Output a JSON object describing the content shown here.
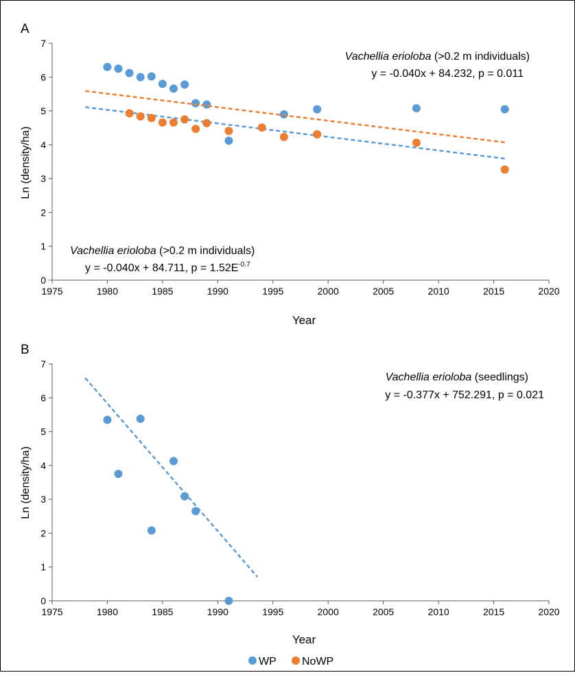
{
  "panels": [
    {
      "label": "A",
      "annotations": [
        {
          "species": "Vachellia erioloba",
          "qualifier": " (>0.2 m individuals)",
          "equation": "y = -0.040x + 84.232, p = 0.011",
          "p_exponent": ""
        },
        {
          "species": "Vachellia erioloba",
          "qualifier": " (>0.2 m individuals)",
          "equation": "y = -0.040x + 84.711, p = 1.52E",
          "p_exponent": "-0.7"
        }
      ]
    },
    {
      "label": "B",
      "annotations": [
        {
          "species": "Vachellia erioloba",
          "qualifier": " (seedlings)",
          "equation": "y = -0.377x + 752.291, p = 0.021",
          "p_exponent": ""
        }
      ]
    }
  ],
  "legend": {
    "items": [
      {
        "label": "WP",
        "color": "#5B9BD5"
      },
      {
        "label": "NoWP",
        "color": "#ED7D31"
      }
    ]
  },
  "chart_data": [
    {
      "type": "scatter",
      "panel": "A",
      "xlabel": "Year",
      "ylabel": "Ln (density/ha)",
      "xlim": [
        1975,
        2020
      ],
      "ylim": [
        0,
        7
      ],
      "xticks": [
        1975,
        1980,
        1985,
        1990,
        1995,
        2000,
        2005,
        2010,
        2015,
        2020
      ],
      "yticks": [
        0,
        1,
        2,
        3,
        4,
        5,
        6,
        7
      ],
      "grid": false,
      "series": [
        {
          "name": "WP",
          "color": "#5B9BD5",
          "points": [
            [
              1980,
              6.3
            ],
            [
              1981,
              6.25
            ],
            [
              1982,
              6.12
            ],
            [
              1983,
              6.0
            ],
            [
              1984,
              6.02
            ],
            [
              1985,
              5.8
            ],
            [
              1986,
              5.66
            ],
            [
              1987,
              5.78
            ],
            [
              1988,
              5.23
            ],
            [
              1989,
              5.19
            ],
            [
              1991,
              4.12
            ],
            [
              1996,
              4.9
            ],
            [
              1999,
              5.05
            ],
            [
              2008,
              5.08
            ],
            [
              2016,
              5.05
            ]
          ],
          "trend": {
            "slope": -0.04,
            "intercept": 84.232,
            "x_range": [
              1978,
              2016
            ]
          }
        },
        {
          "name": "NoWP",
          "color": "#ED7D31",
          "points": [
            [
              1982,
              4.93
            ],
            [
              1983,
              4.84
            ],
            [
              1984,
              4.79
            ],
            [
              1985,
              4.66
            ],
            [
              1986,
              4.66
            ],
            [
              1987,
              4.75
            ],
            [
              1988,
              4.47
            ],
            [
              1989,
              4.64
            ],
            [
              1991,
              4.41
            ],
            [
              1994,
              4.51
            ],
            [
              1996,
              4.23
            ],
            [
              1999,
              4.31
            ],
            [
              2008,
              4.06
            ],
            [
              2016,
              3.27
            ]
          ],
          "trend": {
            "slope": -0.04,
            "intercept": 84.711,
            "x_range": [
              1978,
              2016
            ]
          }
        }
      ]
    },
    {
      "type": "scatter",
      "panel": "B",
      "xlabel": "Year",
      "ylabel": "Ln (density/ha)",
      "xlim": [
        1975,
        2020
      ],
      "ylim": [
        0,
        7
      ],
      "xticks": [
        1975,
        1980,
        1985,
        1990,
        1995,
        2000,
        2005,
        2010,
        2015,
        2020
      ],
      "yticks": [
        0,
        1,
        2,
        3,
        4,
        5,
        6,
        7
      ],
      "grid": false,
      "series": [
        {
          "name": "WP",
          "color": "#5B9BD5",
          "points": [
            [
              1980,
              5.35
            ],
            [
              1981,
              3.75
            ],
            [
              1983,
              5.38
            ],
            [
              1984,
              2.08
            ],
            [
              1986,
              4.13
            ],
            [
              1987,
              3.09
            ],
            [
              1988,
              2.65
            ],
            [
              1991,
              0.0
            ]
          ],
          "trend": {
            "slope": -0.377,
            "intercept": 752.291,
            "x_range": [
              1978,
              1993.6
            ]
          }
        }
      ]
    }
  ]
}
